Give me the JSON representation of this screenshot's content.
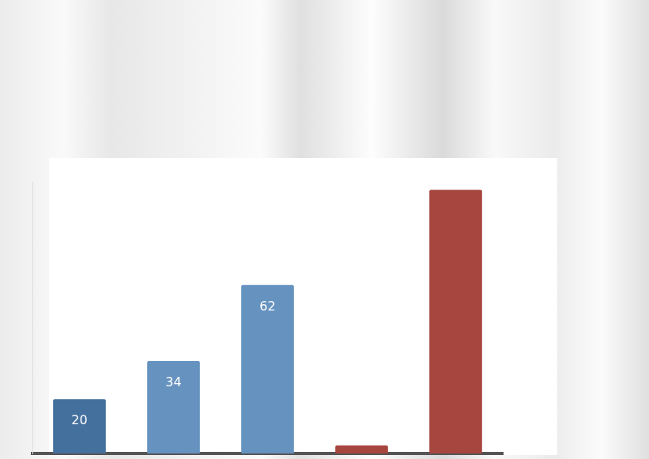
{
  "chart_data": {
    "type": "bar",
    "categories": [
      null,
      null,
      null,
      null,
      null
    ],
    "values": [
      20,
      34,
      62,
      3,
      97
    ],
    "value_labels": [
      "20",
      "34",
      "62",
      null,
      null
    ],
    "colors": [
      "#44709e",
      "#6592bf",
      "#6592bf",
      "#a6463f",
      "#a6463f"
    ],
    "ylim": [
      0,
      100
    ],
    "data_labels": true,
    "tick_labels": false,
    "grid": false
  }
}
